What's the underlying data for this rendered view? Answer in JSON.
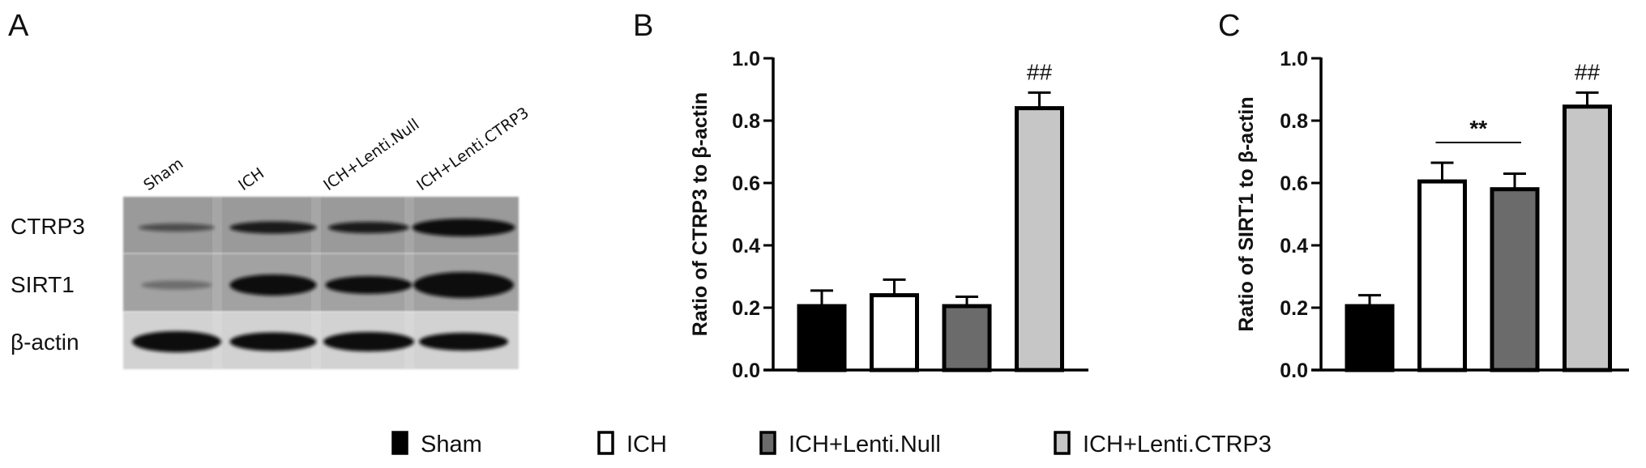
{
  "panels": {
    "a": "A",
    "b": "B",
    "c": "C"
  },
  "blot": {
    "lanes": [
      "Sham",
      "ICH",
      "ICH+Lenti.Null",
      "ICH+Lenti.CTRP3"
    ],
    "rows": [
      "CTRP3",
      "SIRT1",
      "β-actin"
    ]
  },
  "colors": {
    "Sham": "#000000",
    "ICH": "#ffffff",
    "ICH+Lenti.Null": "#6b6b6b",
    "ICH+Lenti.CTRP3": "#c6c6c6"
  },
  "legend": [
    "Sham",
    "ICH",
    "ICH+Lenti.Null",
    "ICH+Lenti.CTRP3"
  ],
  "chart_data": [
    {
      "type": "bar",
      "panel": "B",
      "title": "",
      "xlabel": "",
      "ylabel": "Ratio of CTRP3 to β-actin",
      "ylim": [
        0,
        1.0
      ],
      "yticks": [
        "0.0",
        "0.2",
        "0.4",
        "0.6",
        "0.8",
        "1.0"
      ],
      "categories": [
        "Sham",
        "ICH",
        "ICH+Lenti.Null",
        "ICH+Lenti.CTRP3"
      ],
      "values": [
        0.205,
        0.24,
        0.205,
        0.84
      ],
      "error_upper": [
        0.255,
        0.29,
        0.235,
        0.89
      ],
      "annotations": [
        {
          "text": "##",
          "category": "ICH+Lenti.CTRP3"
        }
      ],
      "brackets": [],
      "grid": false,
      "legend": "bottom"
    },
    {
      "type": "bar",
      "panel": "C",
      "title": "",
      "xlabel": "",
      "ylabel": "Ratio of SIRT1 to β-actin",
      "ylim": [
        0,
        1.0
      ],
      "yticks": [
        "0.0",
        "0.2",
        "0.4",
        "0.6",
        "0.8",
        "1.0"
      ],
      "categories": [
        "Sham",
        "ICH",
        "ICH+Lenti.Null",
        "ICH+Lenti.CTRP3"
      ],
      "values": [
        0.205,
        0.605,
        0.58,
        0.845
      ],
      "error_upper": [
        0.24,
        0.665,
        0.63,
        0.89
      ],
      "annotations": [
        {
          "text": "##",
          "category": "ICH+Lenti.CTRP3"
        }
      ],
      "brackets": [
        {
          "text": "**",
          "from": "ICH",
          "to": "ICH+Lenti.Null",
          "y": 0.73
        }
      ],
      "grid": false,
      "legend": "bottom"
    }
  ]
}
